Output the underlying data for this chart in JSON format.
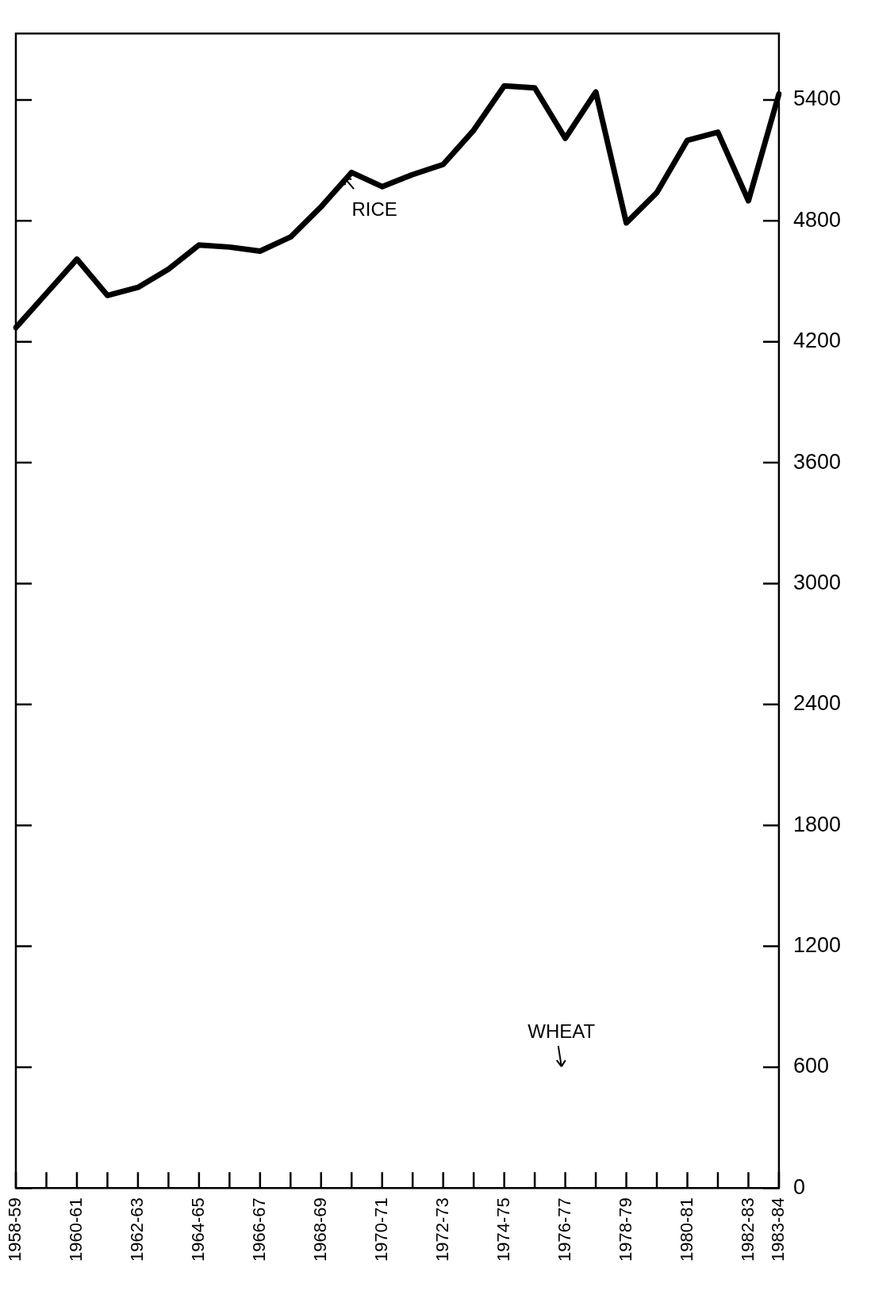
{
  "chart_data": {
    "type": "line",
    "categories": [
      "1958-59",
      null,
      "1960-61",
      null,
      "1962-63",
      null,
      "1964-65",
      null,
      "1966-67",
      null,
      "1968-69",
      null,
      "1970-71",
      null,
      "1972-73",
      null,
      "1974-75",
      null,
      "1976-77",
      null,
      "1978-79",
      null,
      "1980-81",
      null,
      "1982-83",
      "1983-84"
    ],
    "series": [
      {
        "color": "#000000",
        "values": [
          4270,
          4440,
          4610,
          4430,
          4470,
          4560,
          4680,
          4670,
          4650,
          4720,
          4870,
          5040,
          4970,
          5030,
          5080,
          5250,
          5470,
          5460,
          5210,
          5440,
          4790,
          4940,
          5200,
          5240,
          4900,
          5430
        ]
      }
    ],
    "annotations": [
      "RICE",
      "WHEAT"
    ],
    "ylim": [
      0,
      5730
    ],
    "yticks": [
      0,
      600,
      1200,
      1800,
      2400,
      3000,
      3600,
      4200,
      4800,
      5400
    ],
    "grid": false,
    "legend": false,
    "marker": "none",
    "line_style": "solid"
  }
}
